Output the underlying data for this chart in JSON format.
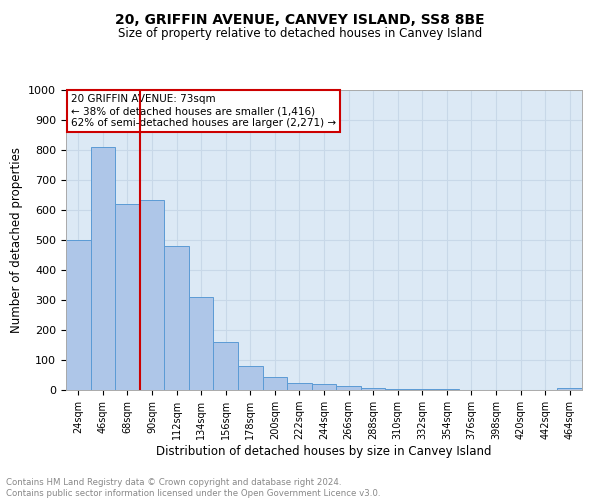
{
  "title": "20, GRIFFIN AVENUE, CANVEY ISLAND, SS8 8BE",
  "subtitle": "Size of property relative to detached houses in Canvey Island",
  "xlabel": "Distribution of detached houses by size in Canvey Island",
  "ylabel": "Number of detached properties",
  "footer_line1": "Contains HM Land Registry data © Crown copyright and database right 2024.",
  "footer_line2": "Contains public sector information licensed under the Open Government Licence v3.0.",
  "categories": [
    "24sqm",
    "46sqm",
    "68sqm",
    "90sqm",
    "112sqm",
    "134sqm",
    "156sqm",
    "178sqm",
    "200sqm",
    "222sqm",
    "244sqm",
    "266sqm",
    "288sqm",
    "310sqm",
    "332sqm",
    "354sqm",
    "376sqm",
    "398sqm",
    "420sqm",
    "442sqm",
    "464sqm"
  ],
  "values": [
    500,
    810,
    620,
    635,
    480,
    310,
    160,
    80,
    45,
    25,
    20,
    12,
    8,
    5,
    3,
    2,
    1,
    1,
    0,
    0,
    8
  ],
  "bar_color": "#aec6e8",
  "bar_edge_color": "#5b9bd5",
  "vline_x": 2.5,
  "vline_color": "#cc0000",
  "annotation_title": "20 GRIFFIN AVENUE: 73sqm",
  "annotation_line2": "← 38% of detached houses are smaller (1,416)",
  "annotation_line3": "62% of semi-detached houses are larger (2,271) →",
  "annotation_box_color": "#ffffff",
  "annotation_border_color": "#cc0000",
  "ylim": [
    0,
    1000
  ],
  "yticks": [
    0,
    100,
    200,
    300,
    400,
    500,
    600,
    700,
    800,
    900,
    1000
  ],
  "grid_color": "#c8d8e8",
  "background_color": "#dce9f5"
}
